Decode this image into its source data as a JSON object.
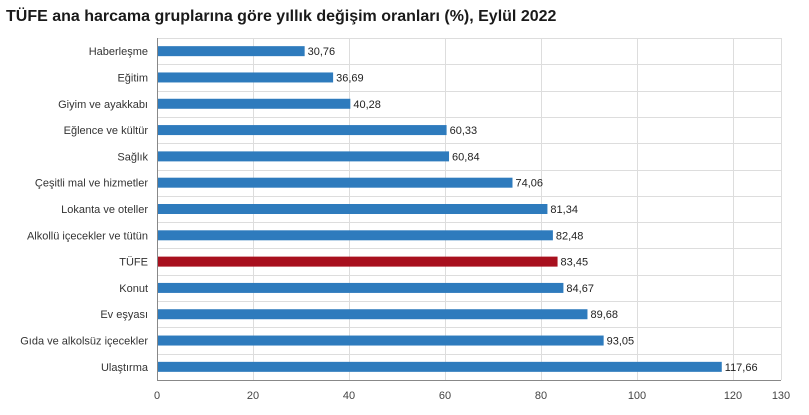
{
  "chart_data": {
    "type": "bar",
    "orientation": "horizontal",
    "title": "TÜFE ana harcama gruplarına göre yıllık değişim oranları (%), Eylül 2022",
    "categories": [
      "Haberleşme",
      "Eğitim",
      "Giyim ve ayakkabı",
      "Eğlence ve kültür",
      "Sağlık",
      "Çeşitli mal ve hizmetler",
      "Lokanta ve oteller",
      "Alkollü içecekler ve tütün",
      "TÜFE",
      "Konut",
      "Ev eşyası",
      "Gıda ve alkolsüz içecekler",
      "Ulaştırma"
    ],
    "values": [
      30.76,
      36.69,
      40.28,
      60.33,
      60.84,
      74.06,
      81.34,
      82.48,
      83.45,
      84.67,
      89.68,
      93.05,
      117.66
    ],
    "value_labels": [
      "30,76",
      "36,69",
      "40,28",
      "60,33",
      "60,84",
      "74,06",
      "81,34",
      "82,48",
      "83,45",
      "84,67",
      "89,68",
      "93,05",
      "117,66"
    ],
    "xlim": [
      0,
      130
    ],
    "xticks": [
      0,
      20,
      40,
      60,
      80,
      100,
      120,
      130
    ],
    "grid": true,
    "colors": {
      "default": "#2e7bbd",
      "highlight": "#a8101e"
    },
    "highlight_category": "TÜFE"
  }
}
